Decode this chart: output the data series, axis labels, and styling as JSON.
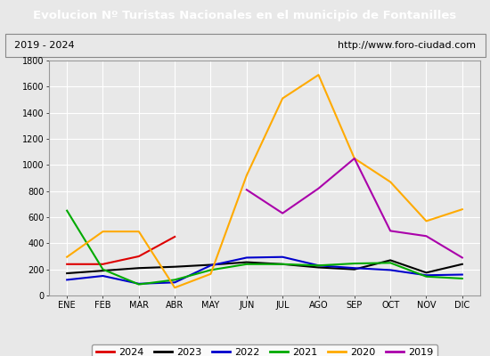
{
  "title": "Evolucion Nº Turistas Nacionales en el municipio de Fontanilles",
  "subtitle_left": "2019 - 2024",
  "subtitle_right": "http://www.foro-ciudad.com",
  "title_bg": "#4d7ebf",
  "title_color": "white",
  "months": [
    "ENE",
    "FEB",
    "MAR",
    "ABR",
    "MAY",
    "JUN",
    "JUL",
    "AGO",
    "SEP",
    "OCT",
    "NOV",
    "DIC"
  ],
  "ylim": [
    0,
    1800
  ],
  "yticks": [
    0,
    200,
    400,
    600,
    800,
    1000,
    1200,
    1400,
    1600,
    1800
  ],
  "series": {
    "2024": {
      "color": "#dd0000",
      "linewidth": 1.5,
      "values": [
        240,
        240,
        300,
        450,
        null,
        null,
        null,
        null,
        null,
        null,
        null,
        null
      ]
    },
    "2023": {
      "color": "#000000",
      "linewidth": 1.5,
      "values": [
        170,
        190,
        210,
        220,
        235,
        255,
        240,
        215,
        200,
        270,
        175,
        240
      ]
    },
    "2022": {
      "color": "#0000cc",
      "linewidth": 1.5,
      "values": [
        120,
        150,
        90,
        100,
        230,
        290,
        295,
        230,
        210,
        195,
        155,
        160
      ]
    },
    "2021": {
      "color": "#00aa00",
      "linewidth": 1.5,
      "values": [
        650,
        200,
        85,
        120,
        195,
        240,
        240,
        230,
        245,
        250,
        145,
        130
      ]
    },
    "2020": {
      "color": "#ffaa00",
      "linewidth": 1.5,
      "values": [
        295,
        490,
        490,
        60,
        165,
        920,
        1510,
        1690,
        1050,
        870,
        570,
        660
      ]
    },
    "2019": {
      "color": "#aa00aa",
      "linewidth": 1.5,
      "values": [
        null,
        null,
        null,
        null,
        null,
        810,
        630,
        820,
        1050,
        495,
        455,
        290
      ]
    }
  },
  "legend_order": [
    "2024",
    "2023",
    "2022",
    "2021",
    "2020",
    "2019"
  ],
  "bg_color": "#e8e8e8",
  "plot_bg": "#e8e8e8",
  "grid_color": "#ffffff",
  "border_color": "#999999"
}
